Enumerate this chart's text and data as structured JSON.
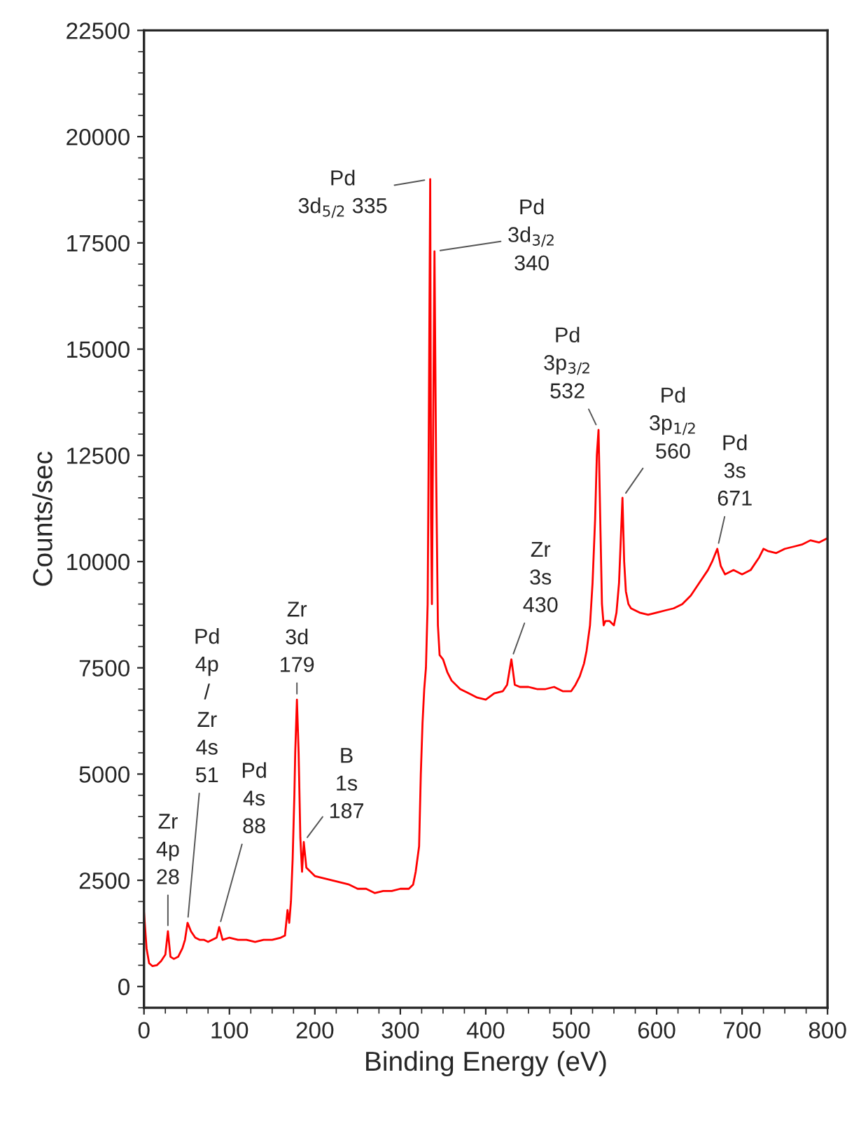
{
  "chart_data": {
    "type": "line",
    "xlabel": "Binding Energy (eV)",
    "ylabel": "Counts/sec",
    "xlim": [
      0,
      800
    ],
    "ylim": [
      -500,
      22500
    ],
    "xticks": [
      0,
      100,
      200,
      300,
      400,
      500,
      600,
      700,
      800
    ],
    "yticks": [
      0,
      2500,
      5000,
      7500,
      10000,
      12500,
      15000,
      17500,
      20000,
      22500
    ],
    "grid": false,
    "legend": false,
    "marker": "none",
    "line_style": "solid",
    "series": [
      {
        "color": "#ff0000",
        "x": [
          0,
          3,
          6,
          10,
          15,
          20,
          25,
          28,
          31,
          35,
          40,
          45,
          48,
          51,
          55,
          60,
          65,
          70,
          75,
          80,
          85,
          88,
          92,
          100,
          110,
          120,
          130,
          140,
          150,
          160,
          165,
          168,
          170,
          172,
          174,
          176,
          177,
          179,
          181,
          183,
          185,
          187,
          190,
          195,
          200,
          210,
          220,
          230,
          240,
          250,
          260,
          270,
          280,
          290,
          300,
          310,
          315,
          318,
          322,
          324,
          326,
          328,
          330,
          332,
          333,
          335,
          336,
          337,
          338,
          340,
          342,
          344,
          346,
          350,
          355,
          360,
          370,
          380,
          390,
          400,
          410,
          420,
          425,
          430,
          434,
          440,
          450,
          460,
          470,
          480,
          490,
          500,
          505,
          510,
          515,
          518,
          522,
          525,
          528,
          530,
          532,
          534,
          536,
          538,
          540,
          545,
          550,
          553,
          556,
          558,
          560,
          562,
          564,
          567,
          570,
          580,
          590,
          600,
          610,
          620,
          630,
          640,
          650,
          660,
          665,
          671,
          675,
          680,
          690,
          700,
          710,
          720,
          725,
          730,
          740,
          750,
          760,
          770,
          780,
          790,
          800
        ],
        "values": [
          1750,
          900,
          550,
          480,
          500,
          600,
          750,
          1300,
          700,
          650,
          700,
          900,
          1100,
          1500,
          1300,
          1150,
          1100,
          1100,
          1050,
          1100,
          1150,
          1400,
          1100,
          1150,
          1100,
          1100,
          1050,
          1100,
          1100,
          1150,
          1200,
          1800,
          1500,
          2000,
          3000,
          4500,
          5500,
          6750,
          5500,
          3500,
          2700,
          3400,
          2800,
          2700,
          2600,
          2550,
          2500,
          2450,
          2400,
          2300,
          2300,
          2200,
          2250,
          2250,
          2300,
          2300,
          2400,
          2700,
          3300,
          5000,
          6200,
          7000,
          7500,
          9000,
          12000,
          19000,
          11000,
          9000,
          12000,
          17300,
          12000,
          8500,
          7800,
          7700,
          7400,
          7200,
          7000,
          6900,
          6800,
          6750,
          6900,
          6950,
          7100,
          7700,
          7100,
          7050,
          7050,
          7000,
          7000,
          7050,
          6950,
          6950,
          7100,
          7300,
          7600,
          7900,
          8500,
          9500,
          11000,
          12500,
          13100,
          11000,
          9000,
          8500,
          8600,
          8600,
          8500,
          8800,
          9500,
          10500,
          11500,
          10000,
          9300,
          9000,
          8900,
          8800,
          8750,
          8800,
          8850,
          8900,
          9000,
          9200,
          9500,
          9800,
          10000,
          10300,
          9900,
          9700,
          9800,
          9700,
          9800,
          10100,
          10300,
          10250,
          10200,
          10300,
          10350,
          10400,
          10500,
          10450,
          10550
        ]
      }
    ],
    "annotations": [
      {
        "text": "Zr\n4p\n28",
        "x": 28,
        "y": 1300
      },
      {
        "text": "Pd\n4p\n/\nZr\n4s\n51",
        "x": 51,
        "y": 1500
      },
      {
        "text": "Pd\n4s\n88",
        "x": 88,
        "y": 1400
      },
      {
        "text": "Zr\n3d\n179",
        "x": 179,
        "y": 6750
      },
      {
        "text": "B\n1s\n187",
        "x": 187,
        "y": 3400
      },
      {
        "text": "Pd\n3d$_{5/2}$ 335",
        "x": 335,
        "y": 19000
      },
      {
        "text": "Pd\n3d$_{3/2}$\n340",
        "x": 340,
        "y": 17300
      },
      {
        "text": "Zr\n3s\n430",
        "x": 430,
        "y": 7700
      },
      {
        "text": "Pd\n3p$_{3/2}$\n532",
        "x": 532,
        "y": 13100
      },
      {
        "text": "Pd\n3p$_{1/2}$\n560",
        "x": 560,
        "y": 11500
      },
      {
        "text": "Pd\n3s\n671",
        "x": 671,
        "y": 10300
      }
    ]
  }
}
